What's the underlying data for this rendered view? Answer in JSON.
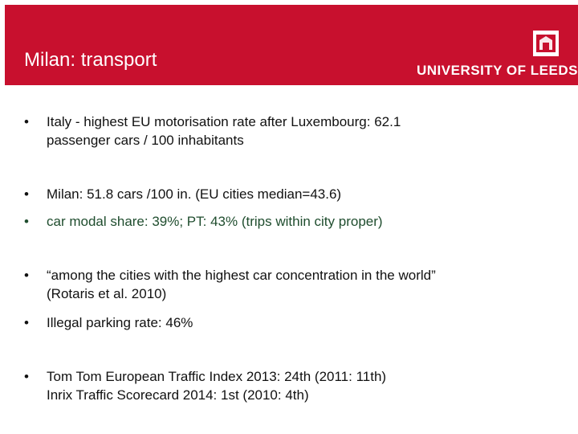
{
  "header": {
    "title": "Milan: transport",
    "logo_text": "UNIVERSITY OF LEEDS",
    "logo_icon": "leeds-crest-icon",
    "color": "#c8102e"
  },
  "bullets": [
    {
      "line1": "Italy - highest EU motorisation rate after Luxembourg: 62.1",
      "line2": "passenger cars / 100 inhabitants"
    },
    {
      "line1": "Milan: 51.8 cars /100 in. (EU cities median=43.6)"
    },
    {
      "line1": "car modal share: 39%; PT: 43% (trips within city proper)"
    },
    {
      "line1": "“among the cities with the highest car concentration in the world”",
      "line2": "(Rotaris et al. 2010)"
    },
    {
      "line1": "Illegal parking rate: 46%"
    },
    {
      "line1": "Tom Tom European Traffic Index 2013: 24th (2011: 11th)",
      "line2": "Inrix Traffic Scorecard 2014: 1st (2010: 4th)"
    }
  ],
  "bullet_symbol": "•"
}
